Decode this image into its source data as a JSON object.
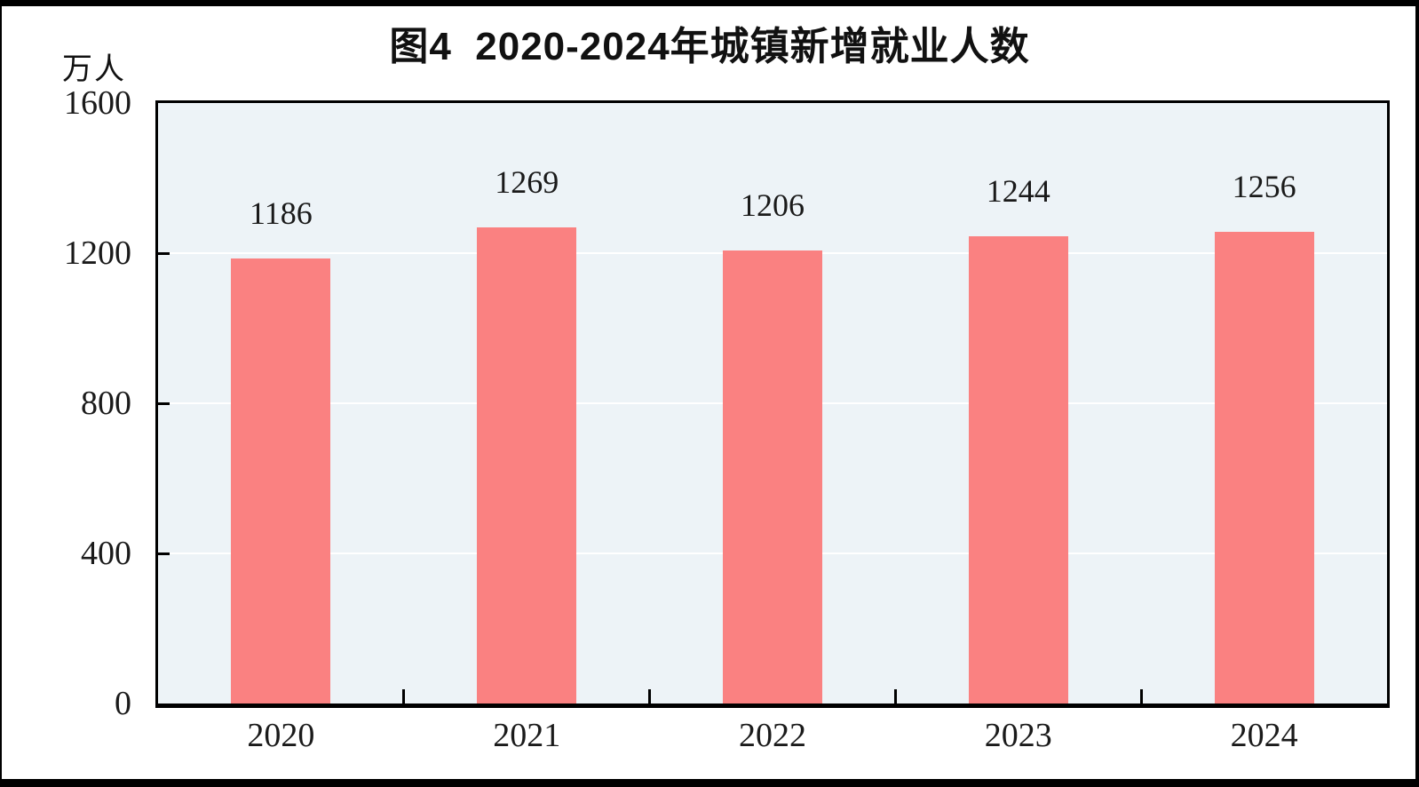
{
  "page": {
    "background": "#ffffff",
    "frame_color": "#000000"
  },
  "chart_data": {
    "type": "bar",
    "title": "图4  2020-2024年城镇新增就业人数",
    "unit_label": "万人",
    "categories": [
      "2020",
      "2021",
      "2022",
      "2023",
      "2024"
    ],
    "values": [
      1186,
      1269,
      1206,
      1244,
      1256
    ],
    "xlabel": "",
    "ylabel": "万人",
    "ylim": [
      0,
      1600
    ],
    "yticks": [
      0,
      400,
      800,
      1200,
      1600
    ],
    "gridline_values": [
      400,
      800,
      1200
    ],
    "grid": "horizontal",
    "legend": null,
    "colors": {
      "bar": "#FA8181",
      "plot_background": "#EDF3F7",
      "gridline": "#FFFFFF",
      "axis": "#000000",
      "text": "#1A1A1A"
    }
  }
}
